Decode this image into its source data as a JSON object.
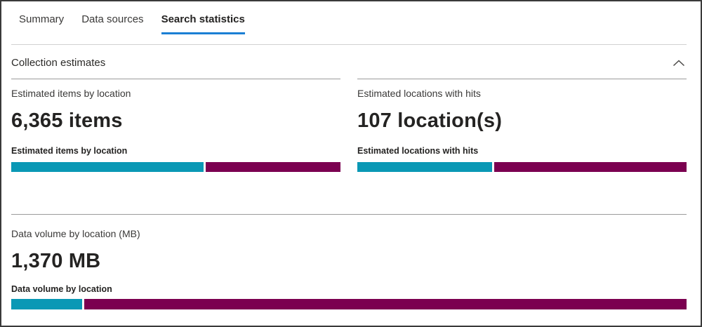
{
  "tabs": [
    {
      "label": "Summary",
      "active": false
    },
    {
      "label": "Data sources",
      "active": false
    },
    {
      "label": "Search statistics",
      "active": true
    }
  ],
  "section": {
    "title": "Collection estimates",
    "collapse_icon": "chevron-up-icon"
  },
  "metrics": {
    "items": {
      "heading": "Estimated items by location",
      "value": "6,365 items",
      "chart_label": "Estimated items by location",
      "segments": [
        {
          "name": "teal-segment",
          "fraction": 0.585
        },
        {
          "name": "magenta-segment",
          "fraction": 0.415
        }
      ]
    },
    "locations": {
      "heading": "Estimated locations with hits",
      "value": "107 location(s)",
      "chart_label": "Estimated locations with hits",
      "segments": [
        {
          "name": "teal-segment",
          "fraction": 0.41
        },
        {
          "name": "magenta-segment",
          "fraction": 0.59
        }
      ]
    },
    "volume": {
      "heading": "Data volume by location (MB)",
      "value": "1,370 MB",
      "chart_label": "Data volume by location",
      "segments": [
        {
          "name": "teal-segment",
          "fraction": 0.105
        },
        {
          "name": "magenta-segment",
          "fraction": 0.895
        }
      ]
    }
  },
  "chart_data": [
    {
      "type": "bar",
      "title": "Estimated items by location",
      "total_label": "6,365 items",
      "total": 6365,
      "segments": [
        {
          "color": "#0a98b5",
          "fraction": 0.585
        },
        {
          "color": "#7b0050",
          "fraction": 0.415
        }
      ]
    },
    {
      "type": "bar",
      "title": "Estimated locations with hits",
      "total_label": "107 location(s)",
      "total": 107,
      "segments": [
        {
          "color": "#0a98b5",
          "fraction": 0.41
        },
        {
          "color": "#7b0050",
          "fraction": 0.59
        }
      ]
    },
    {
      "type": "bar",
      "title": "Data volume by location",
      "total_label": "1,370 MB",
      "total": 1370,
      "segments": [
        {
          "color": "#0a98b5",
          "fraction": 0.105
        },
        {
          "color": "#7b0050",
          "fraction": 0.895
        }
      ]
    }
  ],
  "colors": {
    "teal": "#0a98b5",
    "magenta": "#7b0050",
    "tab-underline": "#1b7fd4",
    "divider-light": "#d1d1d1",
    "divider-dark": "#9a9a9a",
    "text-primary": "#242322",
    "text-secondary": "#3a3938",
    "border": "#3a3a3a"
  }
}
